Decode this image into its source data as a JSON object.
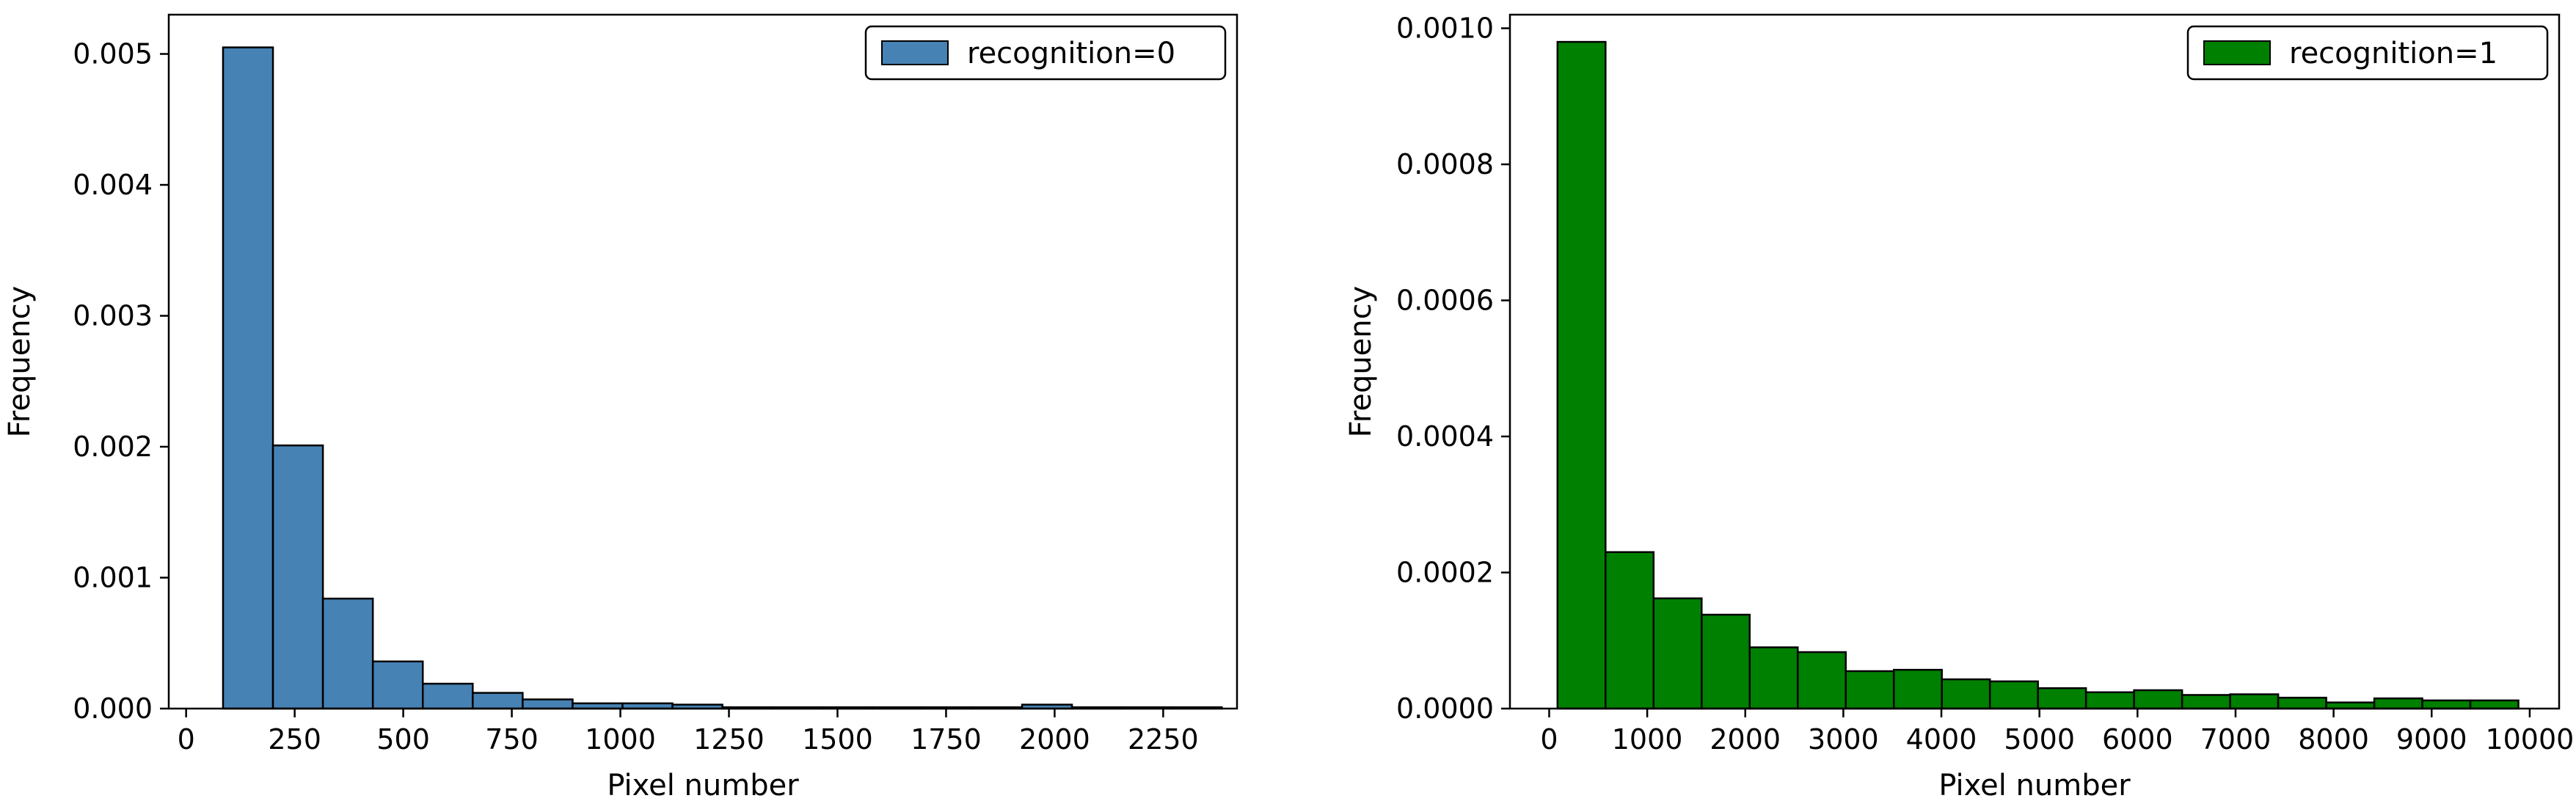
{
  "chart_data": [
    {
      "type": "bar",
      "xlabel": "Pixel number",
      "ylabel": "Frequency",
      "xlim": [
        -40,
        2420
      ],
      "ylim": [
        0,
        0.0053
      ],
      "xticks": [
        0,
        250,
        500,
        750,
        1000,
        1250,
        1500,
        1750,
        2000,
        2250
      ],
      "xtick_labels": [
        "0",
        "250",
        "500",
        "750",
        "1000",
        "1250",
        "1500",
        "1750",
        "2000",
        "2250"
      ],
      "yticks": [
        0,
        0.001,
        0.002,
        0.003,
        0.004,
        0.005
      ],
      "ytick_labels": [
        "0.000",
        "0.001",
        "0.002",
        "0.003",
        "0.004",
        "0.005"
      ],
      "bin_edges": [
        85,
        200,
        315,
        430,
        545,
        660,
        775,
        890,
        1005,
        1120,
        1235,
        1350,
        1465,
        1580,
        1695,
        1810,
        1925,
        2040,
        2155,
        2270,
        2385
      ],
      "series": [
        {
          "name": "recognition=0",
          "color": "#4682b4",
          "values": [
            0.00505,
            0.00201,
            0.00084,
            0.00036,
            0.00019,
            0.00012,
            7e-05,
            4e-05,
            4e-05,
            3e-05,
            1e-05,
            1e-05,
            1e-05,
            1e-05,
            1e-05,
            1e-05,
            3e-05,
            1e-05,
            1e-05,
            1e-05
          ]
        }
      ],
      "legend": "top-right",
      "grid": false
    },
    {
      "type": "bar",
      "xlabel": "Pixel number",
      "ylabel": "Frequency",
      "xlim": [
        -400,
        10300
      ],
      "ylim": [
        0,
        0.00102
      ],
      "xticks": [
        0,
        1000,
        2000,
        3000,
        4000,
        5000,
        6000,
        7000,
        8000,
        9000,
        10000
      ],
      "xtick_labels": [
        "0",
        "1000",
        "2000",
        "3000",
        "4000",
        "5000",
        "6000",
        "7000",
        "8000",
        "9000",
        "10000"
      ],
      "yticks": [
        0,
        0.0002,
        0.0004,
        0.0006,
        0.0008,
        0.001
      ],
      "ytick_labels": [
        "0.0000",
        "0.0002",
        "0.0004",
        "0.0006",
        "0.0008",
        "0.0010"
      ],
      "bin_edges": [
        85,
        575,
        1065,
        1555,
        2045,
        2535,
        3025,
        3515,
        4005,
        4495,
        4985,
        5475,
        5965,
        6455,
        6945,
        7435,
        7925,
        8415,
        8905,
        9395,
        9885
      ],
      "series": [
        {
          "name": "recognition=1",
          "color": "#008000",
          "values": [
            0.00098,
            0.00023,
            0.000162,
            0.000138,
            9e-05,
            8.3e-05,
            5.5e-05,
            5.7e-05,
            4.3e-05,
            4e-05,
            3e-05,
            2.4e-05,
            2.7e-05,
            2e-05,
            2.1e-05,
            1.6e-05,
            9e-06,
            1.5e-05,
            1.2e-05,
            1.2e-05
          ]
        }
      ],
      "legend": "top-right",
      "grid": false
    }
  ]
}
